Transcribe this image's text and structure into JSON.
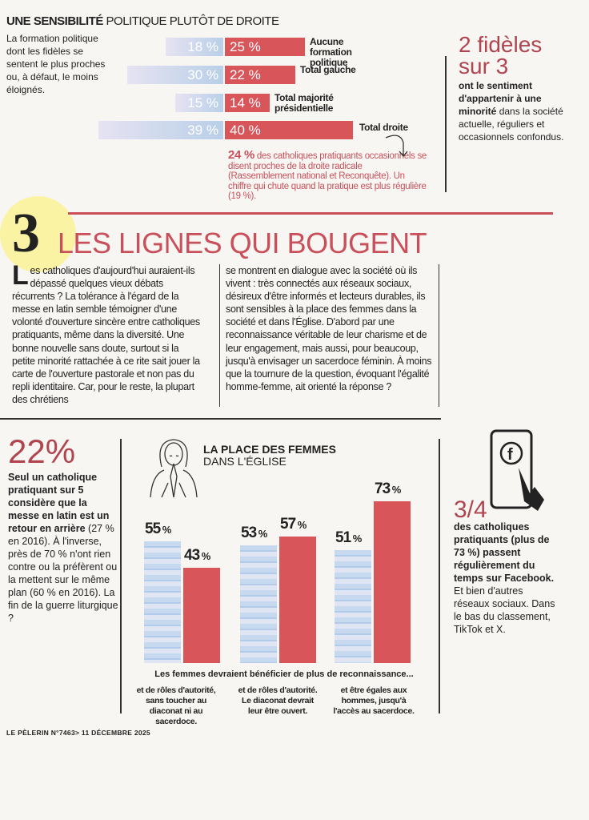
{
  "politique": {
    "title_bold": "UNE SENSIBILITÉ",
    "title_rest": " POLITIQUE PLUTÔT DE DROITE",
    "intro": "La formation politique dont les fidèles se sentent le plus proches ou, à défaut, le moins éloignés.",
    "rows": [
      {
        "label": "Aucune formation politique",
        "blue": 18,
        "blue_text": "18 %",
        "red": 25,
        "red_text": "25 %"
      },
      {
        "label": "Total gauche",
        "blue": 30,
        "blue_text": "30 %",
        "red": 22,
        "red_text": "22 %"
      },
      {
        "label": "Total majorité présidentielle",
        "blue": 15,
        "blue_text": "15 %",
        "red": 14,
        "red_text": "14 %"
      },
      {
        "label": "Total droite",
        "blue": 39,
        "blue_text": "39 %",
        "red": 40,
        "red_text": "40 %"
      }
    ],
    "note_num": "24 %",
    "note_text": " des catholiques pratiquants occasionnels se disent proches de la droite radicale (Rassemblement national et Reconquête). Un chiffre qui chute quand la pratique est plus régulière (19 %)."
  },
  "fideles": {
    "big": "2 fidèles sur 3",
    "bold": "ont le sentiment d'appartenir à une minorité",
    "text": "dans la société actuelle, réguliers et occasionnels confondus."
  },
  "section": {
    "number": "3",
    "title": "LES LIGNES QUI BOUGENT"
  },
  "article": {
    "drop": "L",
    "col1": "es catholiques d'aujourd'hui auraient-ils dépassé quelques vieux débats récurrents ? La tolérance à l'égard de la messe en latin semble témoigner d'une volonté d'ouverture sincère entre catholiques pratiquants, même dans la diversité. Une bonne nouvelle sans doute, surtout si la petite minorité rattachée à ce rite sait jouer la carte de l'ouverture pastorale et non pas du repli identitaire. Car, pour le reste, la plupart des chrétiens",
    "col2": "se montrent en dialogue avec la société où ils vivent : très connectés aux réseaux sociaux, désireux d'être informés et lecteurs durables, ils sont sensibles à la place des femmes dans la société et dans l'Église. D'abord par une reconnaissance véritable de leur charisme et de leur engagement, mais aussi, pour beaucoup, jusqu'à envisager un sacerdoce féminin. À moins que la tournure de la question, évoquant l'égalité homme-femme, ait orienté la réponse ?"
  },
  "latin": {
    "big": "22%",
    "bold": "Seul un catholique pratiquant sur 5 considère que la messe en latin est un retour en arrière",
    "text": " (27 % en 2016). À l'inverse, près de 70 % n'ont rien contre ou la préfèrent ou la mettent sur le même plan (60 % en 2016). La fin de la guerre liturgique ?"
  },
  "chart_data": {
    "type": "bar",
    "title_bold": "LA PLACE DES FEMMES",
    "title_rest": "DANS L'ÉGLISE",
    "caption": "Les femmes devraient bénéficier de plus de reconnaissance...",
    "categories": [
      "et de rôles d'autorité, sans toucher au diaconat ni au sacerdoce.",
      "et de rôles d'autorité. Le diaconat devrait leur être ouvert.",
      "et être égales aux hommes, jusqu'à l'accès au sacerdoce."
    ],
    "series": [
      {
        "name": "blue",
        "values": [
          55,
          53,
          51
        ],
        "color": "#b9cfe8"
      },
      {
        "name": "red",
        "values": [
          43,
          57,
          73
        ],
        "color": "#d8565a"
      }
    ],
    "ylim": [
      0,
      73
    ]
  },
  "facebook": {
    "big": "3/4",
    "bold": "des catholiques pratiquants (plus de 73 %) passent régulièrement du temps sur Facebook.",
    "text": " Et bien d'autres réseaux sociaux. Dans le bas du classement, TikTok et X."
  },
  "footer": "LE PÈLERIN N°7463> 11 DÉCEMBRE 2025",
  "colors": {
    "accent": "#c9505a",
    "bar_red": "#d8565a",
    "bar_blue": "#b9cfe8"
  }
}
